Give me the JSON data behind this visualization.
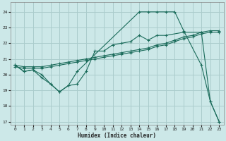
{
  "background_color": "#cce8e8",
  "grid_color": "#aacccc",
  "line_color": "#1a6b5a",
  "xlabel": "Humidex (Indice chaleur)",
  "xlim": [
    -0.5,
    23.5
  ],
  "ylim": [
    16.8,
    24.6
  ],
  "yticks": [
    17,
    18,
    19,
    20,
    21,
    22,
    23,
    24
  ],
  "xticks": [
    0,
    1,
    2,
    3,
    4,
    5,
    6,
    7,
    8,
    9,
    10,
    11,
    12,
    13,
    14,
    15,
    16,
    17,
    18,
    19,
    20,
    21,
    22,
    23
  ],
  "series_main_x": [
    0,
    1,
    2,
    3,
    4,
    5,
    6,
    7,
    8,
    9,
    10,
    11,
    12,
    13,
    14,
    15,
    16,
    17,
    19,
    21,
    22,
    23
  ],
  "series_main_y": [
    20.6,
    20.2,
    20.3,
    20.0,
    19.4,
    18.9,
    19.3,
    19.4,
    20.2,
    21.5,
    21.5,
    21.9,
    22.0,
    22.1,
    22.5,
    22.2,
    22.5,
    22.5,
    22.7,
    22.7,
    18.3,
    17.0
  ],
  "series_upper_x": [
    0,
    1,
    2,
    3,
    4,
    5,
    6,
    7,
    8,
    9,
    10,
    11,
    12,
    13,
    14,
    15,
    16,
    17,
    18,
    19,
    20,
    21,
    22,
    23
  ],
  "series_upper_y": [
    20.6,
    20.5,
    20.5,
    20.5,
    20.6,
    20.7,
    20.8,
    20.9,
    21.0,
    21.1,
    21.2,
    21.3,
    21.4,
    21.5,
    21.6,
    21.7,
    21.9,
    22.0,
    22.2,
    22.4,
    22.5,
    22.7,
    22.8,
    22.8
  ],
  "series_lower_x": [
    0,
    1,
    2,
    3,
    4,
    5,
    6,
    7,
    8,
    9,
    10,
    11,
    12,
    13,
    14,
    15,
    16,
    17,
    18,
    19,
    20,
    21,
    22,
    23
  ],
  "series_lower_y": [
    20.5,
    20.4,
    20.4,
    20.4,
    20.5,
    20.6,
    20.7,
    20.8,
    20.9,
    21.0,
    21.1,
    21.2,
    21.3,
    21.4,
    21.5,
    21.6,
    21.8,
    21.9,
    22.1,
    22.3,
    22.4,
    22.6,
    22.7,
    22.7
  ],
  "series_peak_x": [
    0,
    1,
    2,
    3,
    4,
    5,
    6,
    7,
    14,
    15,
    16,
    17,
    18,
    19,
    21,
    22,
    23
  ],
  "series_peak_y": [
    20.6,
    20.2,
    20.3,
    19.8,
    19.4,
    18.9,
    19.3,
    20.2,
    24.0,
    24.0,
    24.0,
    24.0,
    24.0,
    22.8,
    20.6,
    18.3,
    17.0
  ]
}
